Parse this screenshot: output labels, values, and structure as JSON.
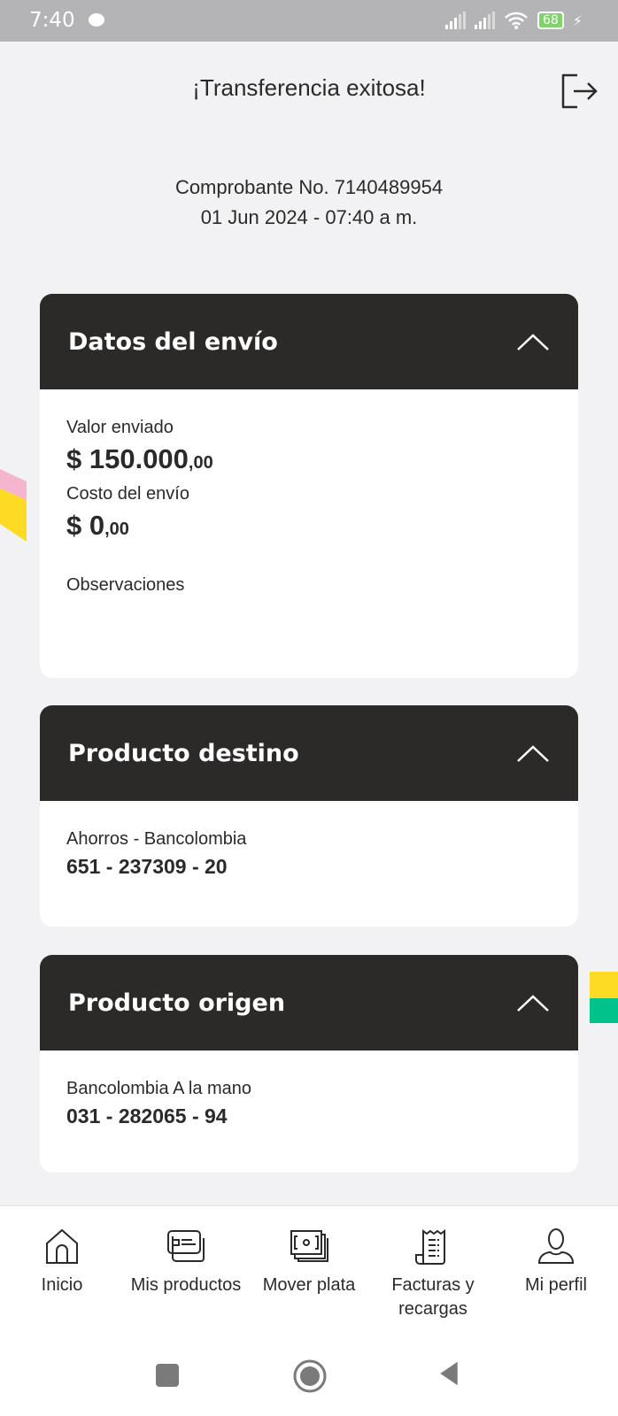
{
  "status_bar": {
    "time": "7:40",
    "battery": "68"
  },
  "header": {
    "title": "¡Transferencia exitosa!"
  },
  "receipt": {
    "number": "Comprobante No. 7140489954",
    "datetime": "01 Jun 2024 - 07:40 a m."
  },
  "shipment": {
    "title": "Datos del envío",
    "sent_label": "Valor enviado",
    "sent_value": "$ 150.000",
    "sent_cents": ",00",
    "cost_label": "Costo del envío",
    "cost_value": "$ 0",
    "cost_cents": ",00",
    "notes_label": "Observaciones"
  },
  "destination": {
    "title": "Producto destino",
    "type": "Ahorros - Bancolombia",
    "account": "651 - 237309 - 20"
  },
  "origin": {
    "title": "Producto origen",
    "type": "Bancolombia A la mano",
    "account": "031 - 282065 - 94"
  },
  "nav": [
    {
      "label": "Inicio",
      "icon": "home-icon"
    },
    {
      "label": "Mis productos",
      "icon": "cards-icon"
    },
    {
      "label": "Mover plata",
      "icon": "money-icon"
    },
    {
      "label": "Facturas y recargas",
      "icon": "receipt-icon"
    },
    {
      "label": "Mi perfil",
      "icon": "user-icon"
    }
  ],
  "colors": {
    "header_dark": "#2c2a29",
    "accent_yellow": "#fdda24",
    "accent_pink": "#f5b5cf",
    "accent_green": "#00c389"
  }
}
